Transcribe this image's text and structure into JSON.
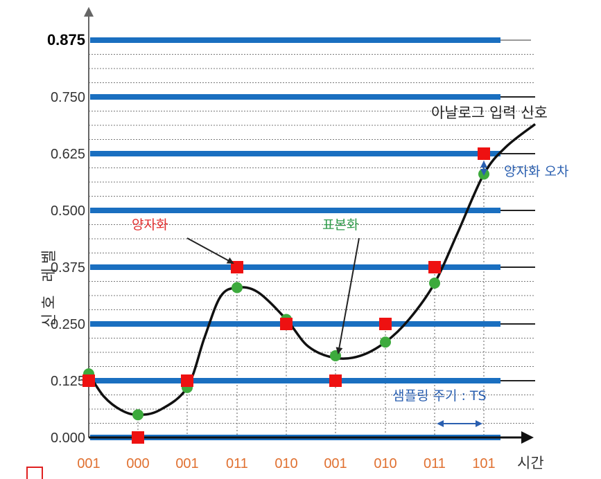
{
  "y_axis": {
    "label": "신호 레벨",
    "ticks": [
      "0.000",
      "0.125",
      "0.250",
      "0.375",
      "0.500",
      "0.625",
      "0.750",
      "0.875"
    ],
    "values": [
      0.0,
      0.125,
      0.25,
      0.375,
      0.5,
      0.625,
      0.75,
      0.875
    ]
  },
  "x_axis": {
    "label": "시간",
    "codes": [
      "001",
      "000",
      "001",
      "011",
      "010",
      "001",
      "010",
      "011",
      "101"
    ]
  },
  "annotations": {
    "analog_signal": "아날로그 입력 신호",
    "quantization_error": "양자화 오차",
    "quantization": "양자화",
    "sampling": "표본화",
    "sampling_period": "샘플링 주기 : TS"
  },
  "samples": [
    0.14,
    0.05,
    0.11,
    0.33,
    0.26,
    0.18,
    0.21,
    0.34,
    0.58
  ],
  "quantized": [
    0.125,
    0.0,
    0.125,
    0.375,
    0.25,
    0.125,
    0.25,
    0.375,
    0.625
  ],
  "colors": {
    "level_bar": "#1a6fc0",
    "sample_dot": "#3daa3d",
    "quantized_square": "#ee1111",
    "curve": "#111111",
    "code_text": "#e07030",
    "red_label": "#e23030",
    "green_label": "#2e9a4a",
    "blue_label": "#2a5fb0"
  }
}
